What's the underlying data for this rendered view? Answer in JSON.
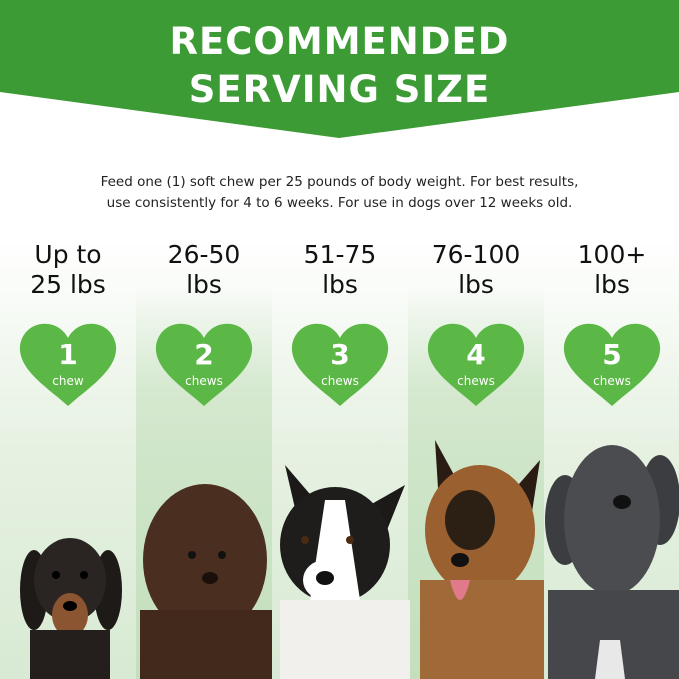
{
  "header": {
    "title_line1": "RECOMMENDED",
    "title_line2": "SERVING SIZE"
  },
  "description": {
    "line1": "Feed one (1) soft chew per 25 pounds of body weight. For best results,",
    "line2": "use consistently for 4 to 6 weeks. For use in dogs over 12 weeks old."
  },
  "servings": [
    {
      "weight_line1": "Up to",
      "weight_line2": "25 lbs",
      "count": "1",
      "unit": "chew"
    },
    {
      "weight_line1": "26-50",
      "weight_line2": "lbs",
      "count": "2",
      "unit": "chews"
    },
    {
      "weight_line1": "51-75",
      "weight_line2": "lbs",
      "count": "3",
      "unit": "chews"
    },
    {
      "weight_line1": "76-100",
      "weight_line2": "lbs",
      "count": "4",
      "unit": "chews"
    },
    {
      "weight_line1": "100+",
      "weight_line2": "lbs",
      "count": "5",
      "unit": "chews"
    }
  ],
  "colors": {
    "banner": "#3c9b34",
    "heart": "#5cb846",
    "text": "#111111"
  },
  "dogs": [
    "dachshund",
    "labradoodle",
    "border-collie",
    "german-shepherd",
    "great-dane"
  ]
}
